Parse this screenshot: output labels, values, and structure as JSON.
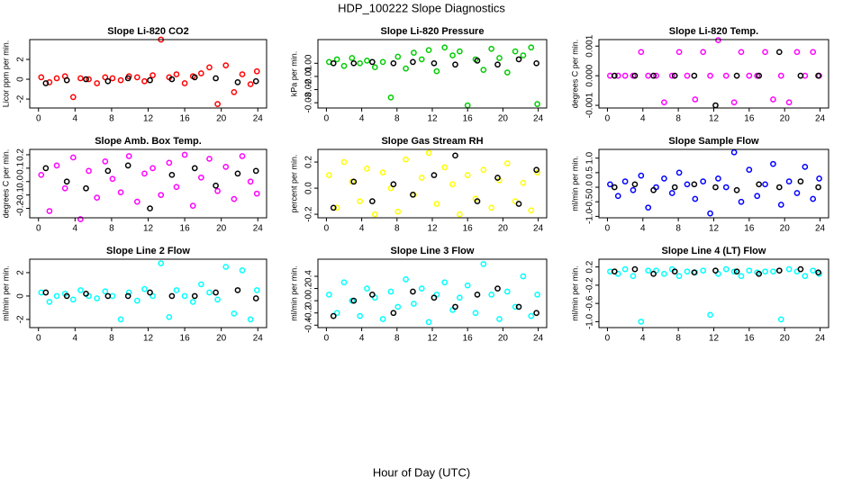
{
  "title": "HDP_100222  Slope Diagnostics",
  "xlabel": "Hour of Day (UTC)",
  "chart_data": [
    {
      "type": "scatter",
      "title": "Slope Li-820 CO2",
      "ylabel": "Licor ppm per min.",
      "xlim": [
        -0.96,
        24.96
      ],
      "xticks": [
        0,
        4,
        8,
        12,
        16,
        20,
        24
      ],
      "ylim": [
        -2.9,
        4.0
      ],
      "yticks": [
        -2,
        0,
        2
      ],
      "series": [
        {
          "color": "#ff0000",
          "x": [
            0.3,
            1.2,
            2.0,
            2.9,
            3.8,
            4.6,
            5.5,
            6.4,
            7.3,
            8.1,
            9.0,
            9.9,
            10.8,
            11.6,
            12.5,
            13.4,
            14.3,
            15.1,
            16.0,
            16.9,
            17.8,
            18.7,
            19.6,
            20.5,
            21.4,
            22.3,
            23.2,
            23.9
          ],
          "values": [
            0.2,
            -0.3,
            0.1,
            0.3,
            -1.8,
            0.1,
            0.0,
            -0.4,
            0.2,
            0.1,
            -0.1,
            0.3,
            0.2,
            -0.2,
            0.4,
            4.0,
            0.2,
            0.5,
            -0.4,
            0.3,
            0.6,
            1.2,
            -2.5,
            1.4,
            -1.3,
            0.5,
            -0.5,
            0.8
          ]
        },
        {
          "color": "#000000",
          "x": [
            0.8,
            3.1,
            5.2,
            7.6,
            9.8,
            12.2,
            14.6,
            17.1,
            19.4,
            21.8,
            23.8
          ],
          "values": [
            -0.4,
            -0.1,
            0.0,
            -0.2,
            0.1,
            -0.1,
            0.0,
            0.2,
            0.1,
            -0.3,
            -0.2
          ]
        }
      ]
    },
    {
      "type": "scatter",
      "title": "Slope Li-820 Pressure",
      "ylabel": "kPa per min.",
      "xlim": [
        -0.96,
        24.96
      ],
      "xticks": [
        0,
        4,
        8,
        12,
        16,
        20,
        24
      ],
      "ylim": [
        -0.034,
        0.018
      ],
      "yticks": [
        {
          "value": -0.03,
          "label": "-0.03"
        },
        {
          "value": -0.02,
          "label": "-0.02"
        },
        {
          "value": -0.01,
          "label": "-0.01"
        },
        {
          "value": 0,
          "label": "0.00"
        }
      ],
      "series": [
        {
          "color": "#00cc00",
          "x": [
            0.3,
            1.2,
            2.0,
            2.9,
            3.8,
            4.6,
            5.5,
            6.4,
            7.3,
            8.1,
            9.0,
            9.9,
            10.8,
            11.6,
            12.5,
            13.4,
            14.3,
            15.1,
            16.0,
            16.9,
            17.8,
            18.7,
            19.6,
            20.5,
            21.4,
            22.3,
            23.2,
            23.9
          ],
          "values": [
            0.001,
            0.003,
            -0.002,
            0.004,
            0.0,
            0.002,
            -0.003,
            0.001,
            -0.026,
            0.005,
            -0.004,
            0.008,
            0.003,
            0.01,
            -0.006,
            0.012,
            0.006,
            0.009,
            -0.032,
            0.003,
            -0.005,
            0.011,
            0.004,
            -0.007,
            0.009,
            0.006,
            0.012,
            -0.031
          ]
        },
        {
          "color": "#000000",
          "x": [
            0.8,
            3.1,
            5.2,
            7.6,
            9.8,
            12.2,
            14.6,
            17.1,
            19.4,
            21.8,
            23.8
          ],
          "values": [
            0.0,
            0.0,
            0.001,
            0.0,
            0.001,
            0.0,
            -0.001,
            0.002,
            -0.001,
            0.003,
            0.0
          ]
        }
      ]
    },
    {
      "type": "scatter",
      "title": "Slope Li-820 Temp.",
      "ylabel": "degrees C per min.",
      "xlim": [
        -0.96,
        24.96
      ],
      "xticks": [
        0,
        4,
        8,
        12,
        16,
        20,
        24
      ],
      "ylim": [
        -0.00109,
        0.00122
      ],
      "yticks": [
        -0.001,
        {
          "value": 0,
          "label": "0.000"
        },
        0.001
      ],
      "series": [
        {
          "color": "#ff00ff",
          "x": [
            0.3,
            1.2,
            2.0,
            2.9,
            3.8,
            4.6,
            5.5,
            6.4,
            7.3,
            8.1,
            9.0,
            9.9,
            10.8,
            11.6,
            12.5,
            13.4,
            14.3,
            15.1,
            16.0,
            16.9,
            17.8,
            18.7,
            19.6,
            20.5,
            21.4,
            22.3,
            23.2,
            23.9
          ],
          "values": [
            0,
            0,
            0,
            0,
            0.0008,
            0,
            0,
            -0.0009,
            0,
            0.0008,
            0,
            -0.0008,
            0.0008,
            0,
            0.0012,
            0,
            -0.0009,
            0.0008,
            0,
            0,
            0.0008,
            -0.0008,
            0,
            -0.0009,
            0.0008,
            0,
            0.0008,
            0
          ]
        },
        {
          "color": "#000000",
          "x": [
            0.8,
            3.1,
            5.2,
            7.6,
            9.8,
            12.2,
            14.6,
            17.1,
            19.4,
            21.8,
            23.8
          ],
          "values": [
            0,
            0,
            0,
            0,
            0,
            -0.001,
            0,
            0,
            0.0008,
            0,
            0
          ]
        }
      ]
    },
    {
      "type": "scatter",
      "title": "Slope Amb. Box Temp.",
      "ylabel": "degrees C per min.",
      "xlim": [
        -0.96,
        24.96
      ],
      "xticks": [
        0,
        4,
        8,
        12,
        16,
        20,
        24
      ],
      "ylim": [
        -0.27,
        0.24
      ],
      "yticks": [
        -0.2,
        -0.1,
        {
          "value": 0,
          "label": "0.0"
        },
        0.1,
        0.2
      ],
      "series": [
        {
          "color": "#ff00ff",
          "x": [
            0.3,
            1.2,
            2.0,
            2.9,
            3.8,
            4.6,
            5.5,
            6.4,
            7.3,
            8.1,
            9.0,
            9.9,
            10.8,
            11.6,
            12.5,
            13.4,
            14.3,
            15.1,
            16.0,
            16.9,
            17.8,
            18.7,
            19.6,
            20.5,
            21.4,
            22.3,
            23.2,
            23.9
          ],
          "values": [
            0.05,
            -0.22,
            0.12,
            -0.05,
            0.18,
            -0.28,
            0.08,
            -0.12,
            0.15,
            0.02,
            -0.08,
            0.19,
            -0.15,
            0.06,
            0.1,
            -0.1,
            0.14,
            -0.04,
            0.2,
            -0.18,
            0.03,
            0.17,
            -0.07,
            0.11,
            -0.13,
            0.19,
            0.0,
            -0.09
          ]
        },
        {
          "color": "#000000",
          "x": [
            0.8,
            3.1,
            5.2,
            7.6,
            9.8,
            12.2,
            14.6,
            17.1,
            19.4,
            21.8,
            23.8
          ],
          "values": [
            0.1,
            0.0,
            -0.05,
            0.08,
            0.12,
            -0.2,
            0.05,
            0.1,
            -0.03,
            0.06,
            0.08
          ]
        }
      ]
    },
    {
      "type": "scatter",
      "title": "Slope Gas Stream RH",
      "ylabel": "percent per min.",
      "xlim": [
        -0.96,
        24.96
      ],
      "xticks": [
        0,
        4,
        8,
        12,
        16,
        20,
        24
      ],
      "ylim": [
        -0.227,
        0.297
      ],
      "yticks": [
        -0.2,
        {
          "value": 0,
          "label": "0.0"
        },
        0.2
      ],
      "series": [
        {
          "color": "#ffff00",
          "x": [
            0.3,
            1.2,
            2.0,
            2.9,
            3.8,
            4.6,
            5.5,
            6.4,
            7.3,
            8.1,
            9.0,
            9.9,
            10.8,
            11.6,
            12.5,
            13.4,
            14.3,
            15.1,
            16.0,
            16.9,
            17.8,
            18.7,
            19.6,
            20.5,
            21.4,
            22.3,
            23.2,
            23.9
          ],
          "values": [
            0.1,
            -0.15,
            0.2,
            0.05,
            -0.1,
            0.15,
            -0.2,
            0.12,
            0.0,
            -0.18,
            0.22,
            -0.05,
            0.08,
            0.27,
            -0.12,
            0.16,
            0.03,
            -0.2,
            0.1,
            -0.08,
            0.14,
            -0.15,
            0.06,
            0.19,
            -0.1,
            0.04,
            -0.17,
            0.12
          ]
        },
        {
          "color": "#000000",
          "x": [
            0.8,
            3.1,
            5.2,
            7.6,
            9.8,
            12.2,
            14.6,
            17.1,
            19.4,
            21.8,
            23.8
          ],
          "values": [
            -0.15,
            0.05,
            -0.1,
            0.03,
            -0.05,
            0.1,
            0.25,
            -0.1,
            0.08,
            -0.12,
            0.14
          ]
        }
      ]
    },
    {
      "type": "scatter",
      "title": "Slope Sample Flow",
      "ylabel": "ml/min per min.",
      "xlim": [
        -0.96,
        24.96
      ],
      "xticks": [
        0,
        4,
        8,
        12,
        16,
        20,
        24
      ],
      "ylim": [
        -1.05,
        1.3
      ],
      "yticks": [
        {
          "value": -1,
          "label": "-1.0"
        },
        -0.5,
        {
          "value": 0,
          "label": "0.0"
        },
        0.5,
        {
          "value": 1,
          "label": "1.0"
        }
      ],
      "series": [
        {
          "color": "#0000ff",
          "x": [
            0.3,
            1.2,
            2.0,
            2.9,
            3.8,
            4.6,
            5.5,
            6.4,
            7.3,
            8.1,
            9.0,
            9.9,
            10.8,
            11.6,
            12.5,
            13.4,
            14.3,
            15.1,
            16.0,
            16.9,
            17.8,
            18.7,
            19.6,
            20.5,
            21.4,
            22.3,
            23.2,
            23.9
          ],
          "values": [
            0.1,
            -0.3,
            0.2,
            -0.1,
            0.4,
            -0.7,
            0.0,
            0.3,
            -0.2,
            0.5,
            0.1,
            -0.4,
            0.2,
            -0.9,
            0.3,
            0.0,
            1.2,
            -0.5,
            0.6,
            -0.3,
            0.1,
            0.8,
            -0.6,
            0.2,
            -0.2,
            0.7,
            -0.4,
            0.3
          ]
        },
        {
          "color": "#000000",
          "x": [
            0.8,
            3.1,
            5.2,
            7.6,
            9.8,
            12.2,
            14.6,
            17.1,
            19.4,
            21.8,
            23.8
          ],
          "values": [
            0.0,
            0.1,
            -0.1,
            0.0,
            0.1,
            0.0,
            -0.1,
            0.1,
            0.0,
            0.2,
            0.0
          ]
        }
      ]
    },
    {
      "type": "scatter",
      "title": "Slope Line 2 Flow",
      "ylabel": "ml/min per min.",
      "xlim": [
        -0.96,
        24.96
      ],
      "xticks": [
        0,
        4,
        8,
        12,
        16,
        20,
        24
      ],
      "ylim": [
        -2.7,
        3.15
      ],
      "yticks": [
        -2,
        0,
        2
      ],
      "series": [
        {
          "color": "#00ffff",
          "x": [
            0.3,
            1.2,
            2.0,
            2.9,
            3.8,
            4.6,
            5.5,
            6.4,
            7.3,
            8.1,
            9.0,
            9.9,
            10.8,
            11.6,
            12.5,
            13.4,
            14.3,
            15.1,
            16.0,
            16.9,
            17.8,
            18.7,
            19.6,
            20.5,
            21.4,
            22.3,
            23.2,
            23.9
          ],
          "values": [
            0.3,
            -0.5,
            0.0,
            0.2,
            -0.3,
            0.5,
            0.0,
            -0.2,
            0.4,
            0.0,
            -2.0,
            0.3,
            -0.4,
            0.6,
            0.0,
            2.8,
            -1.8,
            0.5,
            0.0,
            -0.5,
            1.0,
            0.3,
            -0.3,
            2.5,
            -1.5,
            2.2,
            -2.0,
            0.5
          ]
        },
        {
          "color": "#000000",
          "x": [
            0.8,
            3.1,
            5.2,
            7.6,
            9.8,
            12.2,
            14.6,
            17.1,
            19.4,
            21.8,
            23.8
          ],
          "values": [
            0.3,
            0.0,
            0.2,
            0.0,
            0.0,
            0.3,
            0.0,
            0.0,
            0.3,
            0.5,
            -0.2
          ]
        }
      ]
    },
    {
      "type": "scatter",
      "title": "Slope Line 3 Flow",
      "ylabel": "ml/min per min.",
      "xlim": [
        -0.96,
        24.96
      ],
      "xticks": [
        0,
        4,
        8,
        12,
        16,
        20,
        24
      ],
      "ylim": [
        -0.44,
        0.68
      ],
      "yticks": [
        -0.4,
        -0.2,
        {
          "value": 0,
          "label": "0.0"
        },
        0.2,
        0.4
      ],
      "series": [
        {
          "color": "#00ffff",
          "x": [
            0.3,
            1.2,
            2.0,
            2.9,
            3.8,
            4.6,
            5.5,
            6.4,
            7.3,
            8.1,
            9.0,
            9.9,
            10.8,
            11.6,
            12.5,
            13.4,
            14.3,
            15.1,
            16.0,
            16.9,
            17.8,
            18.7,
            19.6,
            20.5,
            21.4,
            22.3,
            23.2,
            23.9
          ],
          "values": [
            0.1,
            -0.2,
            0.3,
            0.0,
            -0.25,
            0.2,
            0.05,
            -0.3,
            0.15,
            -0.1,
            0.35,
            -0.05,
            0.2,
            -0.35,
            0.1,
            0.3,
            -0.15,
            0.05,
            0.25,
            -0.2,
            0.6,
            0.1,
            -0.3,
            0.15,
            -0.1,
            0.4,
            -0.25,
            0.1
          ]
        },
        {
          "color": "#000000",
          "x": [
            0.8,
            3.1,
            5.2,
            7.6,
            9.8,
            12.2,
            14.6,
            17.1,
            19.4,
            21.8,
            23.8
          ],
          "values": [
            -0.25,
            0.0,
            0.1,
            -0.2,
            0.15,
            0.05,
            -0.1,
            0.1,
            0.2,
            -0.1,
            -0.2
          ]
        }
      ]
    },
    {
      "type": "scatter",
      "title": "Slope Line 4 (LT) Flow",
      "ylabel": "ml/min per min.",
      "xlim": [
        -0.96,
        24.96
      ],
      "xticks": [
        0,
        4,
        8,
        12,
        16,
        20,
        24
      ],
      "ylim": [
        -1.13,
        0.37
      ],
      "yticks": [
        {
          "value": -1,
          "label": "-1.0"
        },
        -0.6,
        -0.2,
        0.2
      ],
      "series": [
        {
          "color": "#00ffff",
          "x": [
            0.3,
            1.2,
            2.0,
            2.9,
            3.8,
            4.6,
            5.5,
            6.4,
            7.3,
            8.1,
            9.0,
            9.9,
            10.8,
            11.6,
            12.5,
            13.4,
            14.3,
            15.1,
            16.0,
            16.9,
            17.8,
            18.7,
            19.6,
            20.5,
            21.4,
            22.3,
            23.2,
            23.9
          ],
          "values": [
            0.1,
            0.05,
            0.15,
            0.0,
            -1.0,
            0.12,
            0.12,
            0.05,
            0.15,
            0.0,
            0.1,
            0.08,
            0.12,
            -0.85,
            0.05,
            0.15,
            0.1,
            0.0,
            0.12,
            0.08,
            0.1,
            0.1,
            -0.95,
            0.15,
            0.1,
            0.0,
            0.12,
            0.05
          ]
        },
        {
          "color": "#000000",
          "x": [
            0.8,
            3.1,
            5.2,
            7.6,
            9.8,
            12.2,
            14.6,
            17.1,
            19.4,
            21.8,
            23.8
          ],
          "values": [
            0.1,
            0.15,
            0.05,
            0.1,
            0.08,
            0.12,
            0.1,
            0.05,
            0.12,
            0.15,
            0.08
          ]
        }
      ]
    }
  ]
}
